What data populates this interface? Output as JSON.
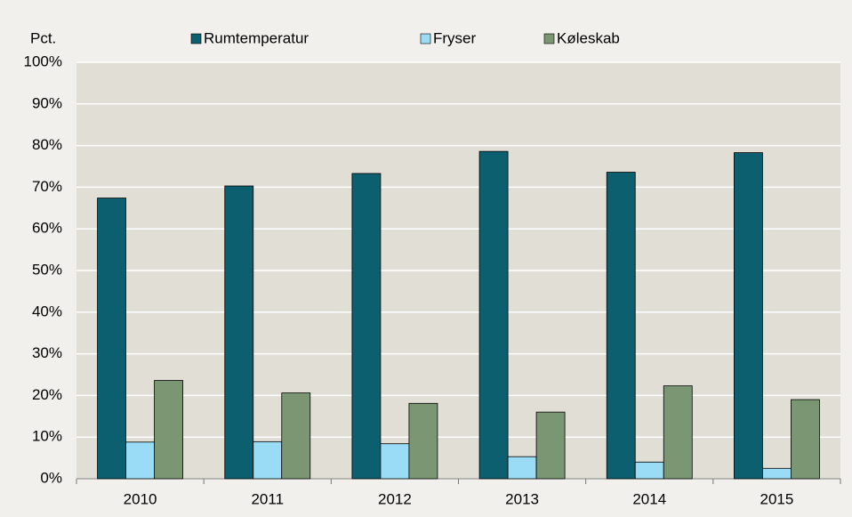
{
  "chart_data": {
    "type": "bar",
    "y_label": "Pct.",
    "categories": [
      "2010",
      "2011",
      "2012",
      "2013",
      "2014",
      "2015"
    ],
    "series": [
      {
        "name": "Rumtemperatur",
        "color": "#0b5f6e",
        "values": [
          67.4,
          70.3,
          73.3,
          78.6,
          73.6,
          78.3
        ]
      },
      {
        "name": "Fryser",
        "color": "#9adcf6",
        "values": [
          8.8,
          8.9,
          8.4,
          5.3,
          4.0,
          2.5
        ]
      },
      {
        "name": "Køleskab",
        "color": "#7b9672",
        "values": [
          23.6,
          20.6,
          18.1,
          16.0,
          22.3,
          19.0
        ]
      }
    ],
    "ylim": [
      0,
      100
    ],
    "yticks": [
      {
        "value": 0,
        "label": "0%"
      },
      {
        "value": 10,
        "label": "10%"
      },
      {
        "value": 20,
        "label": "20%"
      },
      {
        "value": 30,
        "label": "30%"
      },
      {
        "value": 40,
        "label": "40%"
      },
      {
        "value": 50,
        "label": "50%"
      },
      {
        "value": 60,
        "label": "60%"
      },
      {
        "value": 70,
        "label": "70%"
      },
      {
        "value": 80,
        "label": "80%"
      },
      {
        "value": 90,
        "label": "90%"
      },
      {
        "value": 100,
        "label": "100%"
      }
    ],
    "grid": true,
    "legend": "top"
  }
}
